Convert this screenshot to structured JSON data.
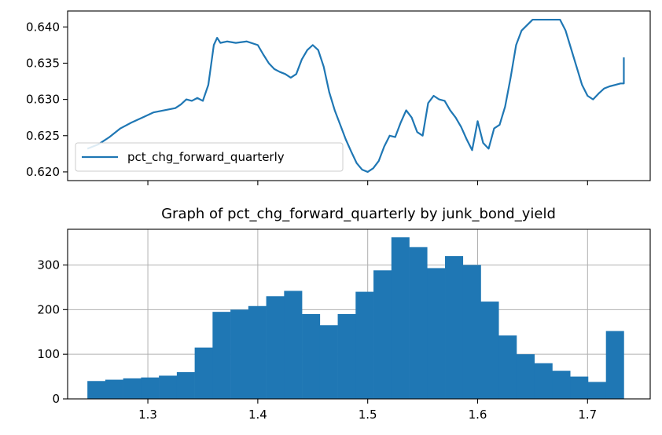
{
  "figure": {
    "background": "#ffffff",
    "line_color": "#1f77b4",
    "bar_color": "#1f77b4"
  },
  "chart_data": [
    {
      "type": "line",
      "title": "",
      "xlabel": "",
      "ylabel": "",
      "xlim": [
        1.227,
        1.757
      ],
      "ylim": [
        0.6188,
        0.6422
      ],
      "xticks": [
        1.3,
        1.4,
        1.5,
        1.6,
        1.7
      ],
      "xtick_labels_shown": false,
      "yticks": [
        0.62,
        0.625,
        0.63,
        0.635,
        0.64
      ],
      "ytick_labels": [
        "0.620",
        "0.625",
        "0.630",
        "0.635",
        "0.640"
      ],
      "grid": false,
      "legend": {
        "location": "lower-left",
        "entries": [
          "pct_chg_forward_quarterly"
        ]
      },
      "series": [
        {
          "name": "pct_chg_forward_quarterly",
          "color": "#1f77b4",
          "x": [
            1.245,
            1.255,
            1.265,
            1.275,
            1.285,
            1.295,
            1.305,
            1.315,
            1.325,
            1.33,
            1.335,
            1.34,
            1.345,
            1.35,
            1.355,
            1.36,
            1.363,
            1.366,
            1.372,
            1.38,
            1.39,
            1.4,
            1.405,
            1.41,
            1.415,
            1.42,
            1.425,
            1.43,
            1.435,
            1.44,
            1.445,
            1.45,
            1.455,
            1.46,
            1.465,
            1.47,
            1.475,
            1.48,
            1.485,
            1.49,
            1.495,
            1.5,
            1.505,
            1.51,
            1.515,
            1.52,
            1.525,
            1.53,
            1.535,
            1.54,
            1.545,
            1.55,
            1.555,
            1.56,
            1.565,
            1.57,
            1.575,
            1.58,
            1.585,
            1.59,
            1.595,
            1.6,
            1.605,
            1.61,
            1.615,
            1.62,
            1.625,
            1.63,
            1.635,
            1.64,
            1.65,
            1.66,
            1.67,
            1.675,
            1.68,
            1.685,
            1.69,
            1.695,
            1.7,
            1.705,
            1.71,
            1.715,
            1.72,
            1.725,
            1.73,
            1.733,
            1.733
          ],
          "y": [
            0.6232,
            0.6238,
            0.6248,
            0.626,
            0.6268,
            0.6275,
            0.6282,
            0.6285,
            0.6288,
            0.6293,
            0.63,
            0.6298,
            0.6302,
            0.6298,
            0.632,
            0.6375,
            0.6385,
            0.6378,
            0.638,
            0.6378,
            0.638,
            0.6375,
            0.6362,
            0.635,
            0.6342,
            0.6338,
            0.6335,
            0.633,
            0.6335,
            0.6355,
            0.6368,
            0.6375,
            0.6368,
            0.6345,
            0.631,
            0.6285,
            0.6265,
            0.6245,
            0.6228,
            0.6212,
            0.6203,
            0.62,
            0.6205,
            0.6215,
            0.6235,
            0.625,
            0.6248,
            0.6268,
            0.6285,
            0.6275,
            0.6255,
            0.625,
            0.6295,
            0.6305,
            0.63,
            0.6298,
            0.6285,
            0.6275,
            0.6262,
            0.6245,
            0.623,
            0.627,
            0.624,
            0.6232,
            0.626,
            0.6265,
            0.629,
            0.633,
            0.6375,
            0.6395,
            0.641,
            0.641,
            0.641,
            0.641,
            0.6395,
            0.637,
            0.6345,
            0.632,
            0.6305,
            0.63,
            0.6308,
            0.6315,
            0.6318,
            0.632,
            0.6322,
            0.6322,
            0.6358
          ]
        }
      ]
    },
    {
      "type": "bar",
      "title": "Graph of pct_chg_forward_quarterly by junk_bond_yield",
      "xlabel": "",
      "ylabel": "",
      "xlim": [
        1.227,
        1.757
      ],
      "ylim": [
        0,
        380
      ],
      "xticks": [
        1.3,
        1.4,
        1.5,
        1.6,
        1.7
      ],
      "xtick_labels": [
        "1.3",
        "1.4",
        "1.5",
        "1.6",
        "1.7"
      ],
      "yticks": [
        0,
        100,
        200,
        300
      ],
      "ytick_labels": [
        "0",
        "100",
        "200",
        "300"
      ],
      "grid": true,
      "bins": {
        "start": 1.245,
        "end": 1.733,
        "count": 30
      },
      "values": [
        40,
        43,
        46,
        48,
        52,
        60,
        115,
        195,
        200,
        208,
        230,
        242,
        190,
        165,
        190,
        240,
        288,
        362,
        340,
        293,
        320,
        300,
        218,
        142,
        100,
        80,
        63,
        50,
        38,
        152
      ]
    }
  ]
}
